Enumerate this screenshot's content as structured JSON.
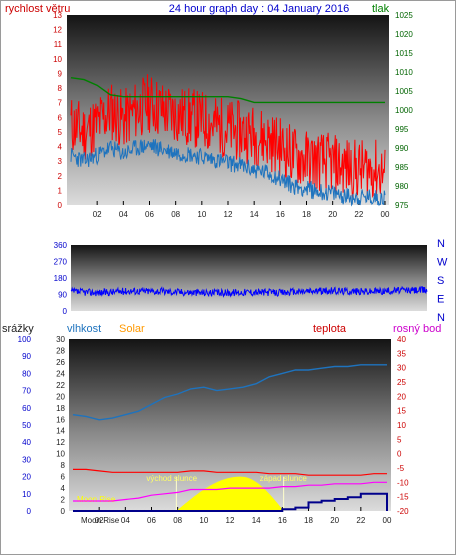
{
  "colors": {
    "wind": "#ff0000",
    "gust": "#ff0000",
    "wind_avg": "#1e73be",
    "pressure": "#008000",
    "direction": "#0000ff",
    "humidity": "#1e73be",
    "temperature": "#ff0000",
    "dewpoint": "#ff00ff",
    "rain": "#00008b",
    "solar": "#ffff00",
    "solar_label": "#ff9900",
    "moon": "#ffff00",
    "title": "#0000cc",
    "tick_red": "#cc0000",
    "tick_green": "#006400",
    "tick_blue": "#0000cc",
    "tick_dark": "#222222",
    "grid": "#000000"
  },
  "chart_data": [
    {
      "type": "line",
      "title": "24 hour graph day : 04 January 2016",
      "left_axis_label": "rychlost větru",
      "right_axis_label": "tlak",
      "x_ticks": [
        "02",
        "04",
        "06",
        "08",
        "10",
        "12",
        "14",
        "16",
        "18",
        "20",
        "22",
        "00"
      ],
      "ylim_left": [
        0,
        13
      ],
      "y_ticks_left": [
        "0",
        "1",
        "2",
        "3",
        "4",
        "5",
        "6",
        "7",
        "8",
        "9",
        "10",
        "11",
        "12",
        "13"
      ],
      "ylim_right": [
        975,
        1025
      ],
      "y_ticks_right": [
        "975",
        "980",
        "985",
        "990",
        "995",
        "1000",
        "1005",
        "1010",
        "1015",
        "1020",
        "1025"
      ],
      "hours": [
        0,
        1,
        2,
        3,
        4,
        5,
        6,
        7,
        8,
        9,
        10,
        11,
        12,
        13,
        14,
        15,
        16,
        17,
        18,
        19,
        20,
        21,
        22,
        23,
        24
      ],
      "series": [
        {
          "key": "gust",
          "values": [
            5.5,
            5.0,
            5.5,
            6.5,
            5.8,
            6.5,
            7.0,
            6.5,
            6.2,
            6.0,
            5.8,
            5.5,
            5.2,
            5.0,
            4.8,
            4.5,
            4.0,
            3.4,
            3.1,
            3.0,
            2.8,
            2.6,
            2.4,
            2.5,
            2.2
          ]
        },
        {
          "key": "wind_avg",
          "values": [
            3.4,
            3.0,
            3.4,
            3.9,
            3.5,
            3.9,
            4.1,
            3.8,
            3.6,
            3.5,
            3.3,
            3.1,
            2.9,
            2.7,
            2.4,
            2.2,
            1.8,
            1.3,
            1.1,
            0.9,
            0.8,
            0.6,
            0.5,
            0.5,
            0.5
          ]
        },
        {
          "key": "pressure",
          "values": [
            1008.5,
            1008.0,
            1006.5,
            1004.0,
            1003.5,
            1003.5,
            1003.5,
            1003.5,
            1003.5,
            1003.5,
            1003.5,
            1003.5,
            1003.5,
            1003.0,
            1002.0,
            1002.0,
            1002.0,
            1002.0,
            1002.0,
            1002.0,
            1002.0,
            1002.0,
            1002.0,
            1002.0,
            1002.0
          ]
        }
      ]
    },
    {
      "type": "line",
      "direction_labels": [
        "N",
        "W",
        "S",
        "E",
        "N"
      ],
      "ylim": [
        0,
        360
      ],
      "y_ticks": [
        "0",
        "90",
        "180",
        "270",
        "360"
      ],
      "hours": [
        0,
        2,
        4,
        6,
        8,
        10,
        12,
        14,
        16,
        18,
        20,
        22,
        24
      ],
      "series": [
        {
          "key": "direction",
          "values": [
            105,
            100,
            110,
            108,
            102,
            98,
            104,
            100,
            108,
            110,
            106,
            112,
            115
          ]
        }
      ]
    },
    {
      "type": "line",
      "labels": {
        "rain": "srážky",
        "humidity": "vlhkost",
        "solar": "Solar",
        "temperature": "teplota",
        "dewpoint": "rosný bod"
      },
      "ylim_rain": [
        0,
        100
      ],
      "y_ticks_rain": [
        "0",
        "10",
        "20",
        "30",
        "40",
        "50",
        "60",
        "70",
        "80",
        "90",
        "100"
      ],
      "ylim_humidity": [
        0,
        30
      ],
      "y_ticks_humidity": [
        "0",
        "2",
        "4",
        "6",
        "8",
        "10",
        "12",
        "14",
        "16",
        "18",
        "20",
        "22",
        "24",
        "26",
        "28",
        "30"
      ],
      "ylim_temp": [
        -20,
        40
      ],
      "y_ticks_temp": [
        "-20",
        "-15",
        "-10",
        "-5",
        "0",
        "5",
        "10",
        "15",
        "20",
        "25",
        "30",
        "35",
        "40"
      ],
      "x_ticks": [
        "02",
        "04",
        "06",
        "08",
        "10",
        "12",
        "14",
        "16",
        "18",
        "20",
        "22",
        "00"
      ],
      "hours": [
        0,
        1,
        2,
        3,
        4,
        5,
        6,
        7,
        8,
        9,
        10,
        11,
        12,
        13,
        14,
        15,
        16,
        17,
        18,
        19,
        20,
        21,
        22,
        23,
        24
      ],
      "series": [
        {
          "key": "humidity",
          "values": [
            56,
            55,
            53,
            54,
            56,
            58,
            62,
            66,
            68,
            71,
            72,
            70,
            71,
            72,
            74,
            78,
            80,
            82,
            82,
            83,
            84,
            84,
            85,
            85,
            85
          ]
        },
        {
          "key": "temperature",
          "values": [
            -5.5,
            -5.5,
            -6.0,
            -6.5,
            -6.5,
            -6.5,
            -6.5,
            -6.5,
            -6.5,
            -6.0,
            -6.0,
            -6.5,
            -6.5,
            -6.5,
            -6.5,
            -7.0,
            -7.0,
            -7.0,
            -7.5,
            -7.5,
            -7.5,
            -7.5,
            -7.5,
            -7.0,
            -7.0
          ]
        },
        {
          "key": "dewpoint",
          "values": [
            -16.5,
            -16.5,
            -16.5,
            -16.5,
            -16.0,
            -15.5,
            -14.5,
            -14.0,
            -13.5,
            -12.5,
            -12.5,
            -12.5,
            -12.0,
            -12.0,
            -12.0,
            -12.0,
            -11.5,
            -11.5,
            -11.0,
            -11.0,
            -10.5,
            -10.5,
            -10.5,
            -10.0,
            -10.0
          ]
        },
        {
          "key": "rain",
          "values": [
            0,
            0,
            0,
            0,
            0,
            0,
            0,
            0,
            0,
            0,
            0,
            0,
            0,
            0,
            0,
            0,
            1,
            2,
            5,
            6,
            7,
            8,
            10,
            10,
            10
          ]
        }
      ],
      "solar_peak_hour": 12.8,
      "solar_peak_value": 6.0,
      "sunrise_hour": 7.9,
      "sunset_hour": 16.1,
      "moon_labels": {
        "rise": "Moon Rise",
        "set": "Moon Rise"
      },
      "sun_labels": {
        "rise": "východ slunce",
        "set": "západ slunce"
      }
    }
  ]
}
